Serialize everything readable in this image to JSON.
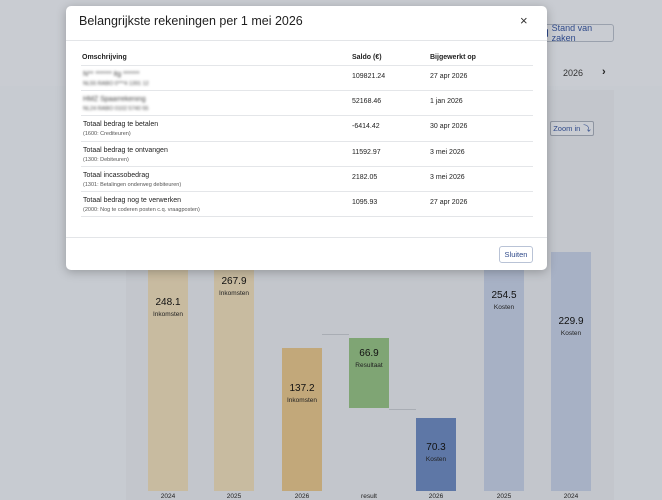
{
  "background": {
    "stand_button": "Stand van zaken",
    "year": "2026",
    "next": "›",
    "zoom_button": "Zoom in"
  },
  "modal": {
    "title": "Belangrijkste rekeningen per 1 mei 2026",
    "close": "×",
    "headers": {
      "desc": "Omschrijving",
      "balance": "Saldo (€)",
      "updated": "Bijgewerkt op"
    },
    "rows": [
      {
        "name": "N** ****** ltg ******",
        "sub": "NL55 RABO 0***4 1391 12",
        "balance": "109821.24",
        "updated": "27 apr 2026",
        "blurred": true
      },
      {
        "name": "HMZ Spaarrekening",
        "sub": "NL24 RABO 0102 5740 55",
        "balance": "52168.46",
        "updated": "1 jan 2026",
        "blurred": true
      },
      {
        "name": "Totaal bedrag te betalen",
        "sub": "(1600: Crediteuren)",
        "balance": "-6414.42",
        "updated": "30 apr 2026"
      },
      {
        "name": "Totaal bedrag te ontvangen",
        "sub": "(1300: Debiteuren)",
        "balance": "11592.97",
        "updated": "3 mei 2026"
      },
      {
        "name": "Totaal incassobedrag",
        "sub": "(1301: Betalingen onderweg debiteuren)",
        "balance": "2182.05",
        "updated": "3 mei 2026"
      },
      {
        "name": "Totaal bedrag nog te verwerken",
        "sub": "(2000: Nog te coderen posten c.q. vraagposten)",
        "balance": "1095.93",
        "updated": "27 apr 2026"
      }
    ],
    "close_button": "Sluiten"
  },
  "chart_data": {
    "type": "bar",
    "categories": [
      "2024",
      "2025",
      "2026",
      "result",
      "2026",
      "2025",
      "2024"
    ],
    "values": [
      248.1,
      267.9,
      137.2,
      66.9,
      70.3,
      254.5,
      229.9
    ],
    "labels": [
      "Inkomsten",
      "Inkomsten",
      "Inkomsten",
      "Resultaat",
      "Kosten",
      "Kosten",
      "Kosten"
    ],
    "colors": [
      "#c8bba0",
      "#c8bba0",
      "#c2a87a",
      "#7fa574",
      "#5e77a6",
      "#a7b1c5",
      "#a7b1c5"
    ],
    "value_labels": [
      "248.1",
      "267.9",
      "137.2",
      "66.9",
      "70.3",
      "254.5",
      "229.9"
    ]
  }
}
